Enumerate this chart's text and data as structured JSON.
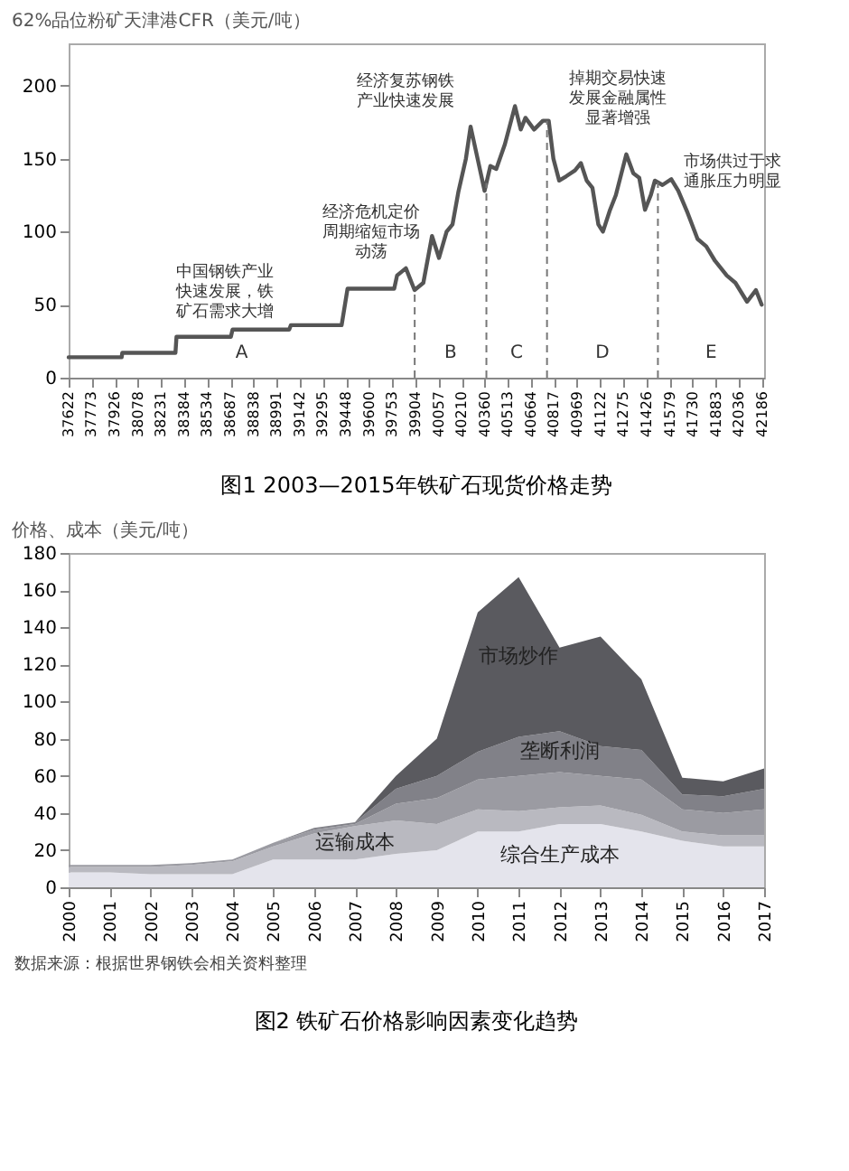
{
  "chart_data": [
    {
      "type": "line",
      "title": "图1 2003—2015年铁矿石现货价格走势",
      "ylabel": "62%品位粉矿天津港CFR（美元/吨）",
      "xlim": [
        37622,
        42200
      ],
      "ylim": [
        0,
        229
      ],
      "xticks": [
        37622,
        37773,
        37926,
        38078,
        38231,
        38384,
        38534,
        38687,
        38838,
        38991,
        39142,
        39295,
        39448,
        39600,
        39753,
        39904,
        40057,
        40210,
        40360,
        40513,
        40664,
        40817,
        40969,
        41122,
        41275,
        41426,
        41579,
        41730,
        41883,
        42036,
        42186
      ],
      "yticks": [
        0,
        50,
        100,
        150,
        200
      ],
      "series": [
        {
          "color": "#555555",
          "x": [
            37622,
            37971,
            37975,
            38325,
            38332,
            38690,
            38701,
            39074,
            39085,
            39419,
            39458,
            39765,
            39784,
            39842,
            39899,
            39957,
            40014,
            40060,
            40110,
            40149,
            40187,
            40237,
            40268,
            40314,
            40360,
            40398,
            40437,
            40494,
            40560,
            40598,
            40629,
            40686,
            40744,
            40782,
            40813,
            40851,
            40898,
            40955,
            40994,
            41032,
            41070,
            41109,
            41139,
            41186,
            41224,
            41293,
            41339,
            41378,
            41416,
            41454,
            41481,
            41531,
            41589,
            41635,
            41696,
            41762,
            41819,
            41877,
            41954,
            42011,
            42088,
            42146,
            42184
          ],
          "values": [
            14,
            14,
            17,
            17,
            28,
            28,
            33,
            33,
            36,
            36,
            61,
            61,
            70,
            75,
            60,
            65,
            97,
            82,
            100,
            105,
            127,
            150,
            172,
            150,
            128,
            145,
            143,
            160,
            186,
            170,
            178,
            170,
            176,
            176,
            150,
            135,
            138,
            142,
            147,
            135,
            130,
            105,
            100,
            115,
            125,
            153,
            140,
            137,
            115,
            125,
            135,
            132,
            136,
            128,
            113,
            95,
            90,
            80,
            70,
            65,
            52,
            60,
            50
          ]
        }
      ],
      "ref_lines": [
        {
          "axis": "x",
          "value": 39900,
          "line_style": "dashed",
          "color": "#777777"
        },
        {
          "axis": "x",
          "value": 40372,
          "line_style": "dashed",
          "color": "#777777"
        },
        {
          "axis": "x",
          "value": 40771,
          "line_style": "dashed",
          "color": "#777777"
        },
        {
          "axis": "x",
          "value": 41501,
          "line_style": "dashed",
          "color": "#777777"
        }
      ],
      "annotations": [
        "A",
        "B",
        "C",
        "D",
        "E",
        "中国钢铁产业快速发展，铁矿石需求大增",
        "经济危机定价周期缩短市场动荡",
        "经济复苏钢铁产业快速发展",
        "掉期交易快速发展金融属性显著增强",
        "市场供过于求通胀压力明显"
      ]
    },
    {
      "type": "area",
      "stacked": true,
      "title": "图2 铁矿石价格影响因素变化趋势",
      "ylabel": "价格、成本（美元/吨）",
      "categories": [
        "2000",
        "2001",
        "2002",
        "2003",
        "2004",
        "2005",
        "2006",
        "2007",
        "2008",
        "2009",
        "2010",
        "2011",
        "2012",
        "2013",
        "2014",
        "2015",
        "2016",
        "2017"
      ],
      "ylim": [
        0,
        180
      ],
      "yticks": [
        0,
        20,
        40,
        60,
        80,
        100,
        120,
        140,
        160,
        180
      ],
      "series": [
        {
          "name": "综合生产成本",
          "color": "#e4e4ec",
          "values": [
            8,
            8,
            7,
            7,
            7,
            15,
            15,
            15,
            18,
            20,
            30,
            30,
            34,
            34,
            30,
            25,
            22,
            22
          ]
        },
        {
          "name": "运输成本",
          "color": "#b9b9c0",
          "values": [
            3,
            3,
            4,
            5,
            7,
            7,
            14,
            18,
            18,
            14,
            12,
            11,
            9,
            10,
            9,
            5,
            6,
            6
          ]
        },
        {
          "color": "#9b9ba2",
          "values": [
            1,
            1,
            1,
            1,
            1,
            2,
            2,
            1,
            9,
            14,
            16,
            19,
            19,
            16,
            19,
            12,
            12,
            14
          ]
        },
        {
          "name": "垄断利润",
          "color": "#818188",
          "values": [
            0,
            0,
            0,
            0,
            0,
            0,
            1,
            1,
            8,
            12,
            15,
            21,
            22,
            16,
            16,
            8,
            9,
            11
          ]
        },
        {
          "name": "市场炒作",
          "color": "#5a5a5f",
          "values": [
            0,
            0,
            0,
            0,
            0,
            0,
            0,
            0,
            7,
            20,
            75,
            86,
            45,
            59,
            38,
            9,
            8,
            11
          ]
        }
      ],
      "annotations": [
        "数据来源：根据世界钢铁会相关资料整理"
      ]
    }
  ]
}
